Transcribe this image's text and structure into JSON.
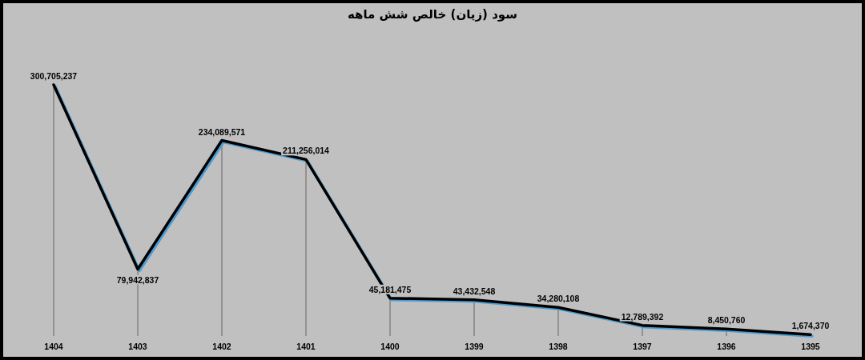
{
  "chart_data": {
    "type": "line",
    "title": "سود (زیان) خالص شش ماهه",
    "categories": [
      "1404",
      "1403",
      "1402",
      "1401",
      "1400",
      "1399",
      "1398",
      "1397",
      "1396",
      "1395"
    ],
    "series": [
      {
        "color": "#000000",
        "values": [
          300705237,
          79942837,
          234089571,
          211256014,
          45181475,
          43432548,
          34280108,
          12789392,
          8450760,
          1674370
        ],
        "value_labels": [
          "300,705,237",
          "79,942,837",
          "234,089,571",
          "211,256,014",
          "45,181,475",
          "43,432,548",
          "34,280,108",
          "12,789,392",
          "8,450,760",
          "1,674,370"
        ]
      }
    ],
    "grid": "x"
  }
}
